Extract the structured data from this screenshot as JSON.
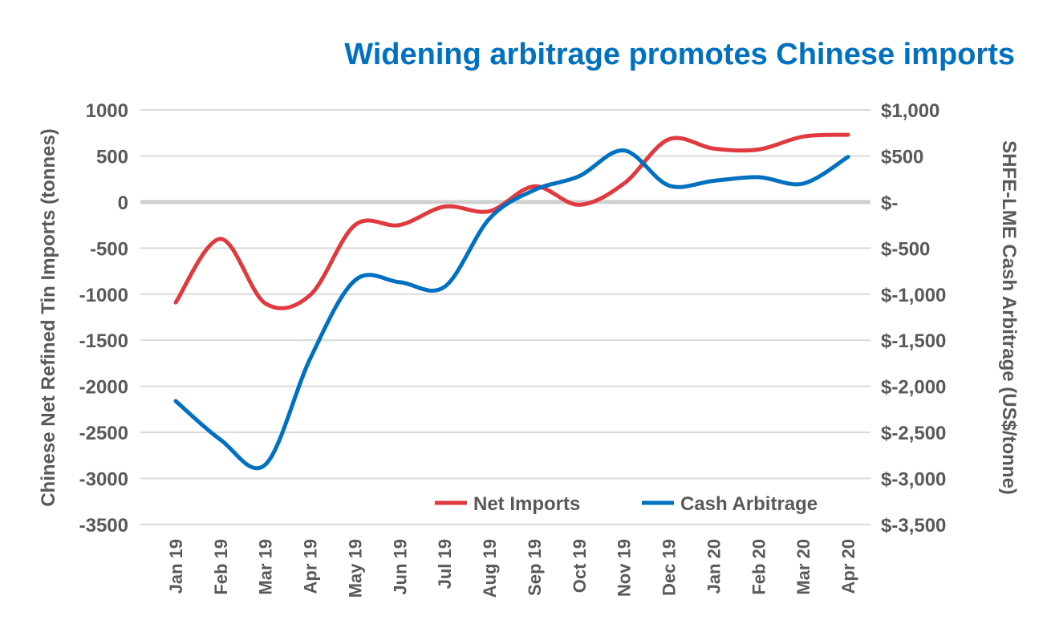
{
  "chart_data": {
    "type": "line",
    "title": "Widening arbitrage promotes Chinese imports",
    "ylabel": "Chinese Net Refined Tin Imports (tonnes)",
    "y2label": "SHFE-LME Cash Arbitrage (US$/tonne)",
    "ylim": [
      -3500,
      1000
    ],
    "y2lim": [
      -3500,
      1000
    ],
    "yticks": [
      "1000",
      "500",
      "0",
      "-500",
      "-1000",
      "-1500",
      "-2000",
      "-2500",
      "-3000",
      "-3500"
    ],
    "y2ticks": [
      "$1,000",
      "$500",
      "$-",
      "$-500",
      "$-1,000",
      "$-1,500",
      "$-2,000",
      "$-2,500",
      "$-3,000",
      "$-3,500"
    ],
    "categories": [
      "Jan 19",
      "Feb 19",
      "Mar 19",
      "Apr 19",
      "May 19",
      "Jun 19",
      "Jul 19",
      "Aug 19",
      "Sep 19",
      "Oct 19",
      "Nov 19",
      "Dec 19",
      "Jan 20",
      "Feb 20",
      "Mar 20",
      "Apr 20"
    ],
    "grid": true,
    "legend_position": "bottom-right",
    "series": [
      {
        "name": "Net Imports",
        "axis": "left",
        "color": "#E0393E",
        "values": [
          -1090,
          -400,
          -1100,
          -1010,
          -250,
          -250,
          -50,
          -100,
          170,
          -30,
          200,
          680,
          580,
          570,
          710,
          730
        ]
      },
      {
        "name": "Cash Arbitrage",
        "axis": "right",
        "color": "#0070C0",
        "values": [
          -2160,
          -2580,
          -2850,
          -1700,
          -850,
          -870,
          -920,
          -180,
          130,
          280,
          560,
          180,
          230,
          270,
          200,
          490
        ]
      }
    ]
  },
  "colors": {
    "title": "#0070C0",
    "axis_text": "#595959",
    "grid": "#D9D9D9"
  }
}
